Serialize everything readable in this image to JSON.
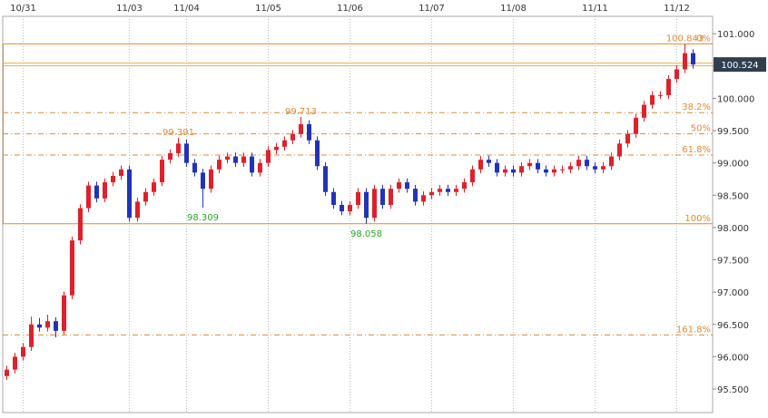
{
  "chart_data": {
    "type": "candlestick",
    "categories": [
      null,
      null,
      "10/31",
      null,
      null,
      null,
      null,
      null,
      null,
      null,
      null,
      null,
      null,
      null,
      null,
      "11/03",
      null,
      null,
      null,
      null,
      null,
      null,
      "11/04",
      null,
      null,
      null,
      null,
      null,
      null,
      null,
      null,
      null,
      "11/05",
      null,
      null,
      null,
      null,
      null,
      null,
      null,
      null,
      null,
      "11/06",
      null,
      null,
      null,
      null,
      null,
      null,
      null,
      null,
      null,
      "11/07",
      null,
      null,
      null,
      null,
      null,
      null,
      null,
      null,
      null,
      "11/08",
      null,
      null,
      null,
      null,
      null,
      null,
      null,
      null,
      null,
      "11/11",
      null,
      null,
      null,
      null,
      null,
      null,
      null,
      null,
      null,
      "11/12",
      null,
      null
    ],
    "open": [
      95.7,
      95.8,
      96.0,
      96.15,
      96.5,
      96.45,
      96.55,
      96.4,
      96.95,
      97.8,
      98.3,
      98.65,
      98.45,
      98.7,
      98.8,
      98.9,
      98.15,
      98.4,
      98.55,
      98.7,
      99.05,
      99.15,
      99.3,
      99.0,
      98.85,
      98.6,
      98.9,
      99.05,
      99.1,
      99.0,
      99.1,
      98.85,
      99.0,
      99.2,
      99.25,
      99.35,
      99.45,
      99.6,
      99.35,
      98.95,
      98.55,
      98.35,
      98.25,
      98.35,
      98.55,
      98.15,
      98.6,
      98.35,
      98.6,
      98.7,
      98.6,
      98.4,
      98.5,
      98.55,
      98.6,
      98.55,
      98.6,
      98.7,
      98.9,
      99.05,
      99.0,
      98.85,
      98.9,
      98.85,
      98.95,
      99.0,
      98.9,
      98.85,
      98.9,
      98.9,
      98.95,
      99.05,
      98.95,
      98.9,
      98.95,
      99.1,
      99.3,
      99.45,
      99.7,
      99.9,
      100.05,
      100.05,
      100.3,
      100.45,
      100.7
    ],
    "high": [
      95.86,
      96.06,
      96.21,
      96.62,
      96.6,
      96.65,
      96.61,
      97.01,
      97.86,
      98.36,
      98.71,
      98.71,
      98.76,
      98.86,
      98.96,
      98.96,
      98.46,
      98.61,
      98.76,
      99.11,
      99.21,
      99.391,
      99.36,
      99.06,
      98.91,
      98.96,
      99.11,
      99.16,
      99.16,
      99.16,
      99.16,
      99.06,
      99.26,
      99.31,
      99.41,
      99.51,
      99.713,
      99.66,
      99.41,
      99.01,
      98.61,
      98.41,
      98.41,
      98.61,
      98.61,
      98.66,
      98.66,
      98.66,
      98.76,
      98.76,
      98.66,
      98.56,
      98.61,
      98.66,
      98.66,
      98.66,
      98.76,
      98.96,
      99.11,
      99.11,
      99.06,
      98.96,
      98.96,
      99.01,
      99.06,
      99.06,
      98.96,
      98.96,
      98.96,
      99.01,
      99.11,
      99.11,
      99.01,
      99.01,
      99.16,
      99.36,
      99.51,
      99.76,
      99.96,
      100.11,
      100.11,
      100.36,
      100.51,
      100.843,
      100.76
    ],
    "low": [
      95.64,
      95.74,
      95.94,
      96.09,
      96.39,
      96.39,
      96.3,
      96.34,
      96.89,
      97.74,
      98.24,
      98.39,
      98.39,
      98.64,
      98.74,
      98.09,
      98.09,
      98.34,
      98.49,
      98.64,
      98.99,
      99.09,
      98.94,
      98.79,
      98.309,
      98.54,
      98.84,
      98.99,
      98.94,
      98.94,
      98.79,
      98.79,
      98.94,
      99.14,
      99.19,
      99.29,
      99.39,
      99.29,
      98.89,
      98.49,
      98.29,
      98.19,
      98.19,
      98.29,
      98.058,
      98.09,
      98.29,
      98.29,
      98.54,
      98.54,
      98.34,
      98.34,
      98.44,
      98.49,
      98.49,
      98.49,
      98.54,
      98.64,
      98.84,
      98.94,
      98.79,
      98.79,
      98.79,
      98.79,
      98.89,
      98.84,
      98.79,
      98.79,
      98.84,
      98.84,
      98.89,
      98.89,
      98.84,
      98.84,
      98.89,
      99.04,
      99.24,
      99.39,
      99.64,
      99.84,
      99.99,
      99.99,
      100.24,
      100.39,
      100.46
    ],
    "close": [
      95.8,
      96.0,
      96.15,
      96.5,
      96.45,
      96.55,
      96.4,
      96.95,
      97.8,
      98.3,
      98.65,
      98.45,
      98.7,
      98.8,
      98.9,
      98.15,
      98.4,
      98.55,
      98.7,
      99.05,
      99.15,
      99.3,
      99.0,
      98.85,
      98.6,
      98.9,
      99.05,
      99.1,
      99.0,
      99.1,
      98.85,
      99.0,
      99.2,
      99.25,
      99.35,
      99.45,
      99.6,
      99.35,
      98.95,
      98.55,
      98.35,
      98.25,
      98.35,
      98.55,
      98.15,
      98.6,
      98.35,
      98.6,
      98.7,
      98.6,
      98.4,
      98.5,
      98.55,
      98.6,
      98.55,
      98.6,
      98.7,
      98.9,
      99.05,
      99.0,
      98.85,
      98.9,
      98.85,
      98.95,
      99.0,
      98.9,
      98.85,
      98.9,
      98.9,
      98.95,
      99.05,
      98.95,
      98.9,
      98.95,
      99.1,
      99.3,
      99.45,
      99.7,
      99.9,
      100.05,
      100.05,
      100.3,
      100.45,
      100.7,
      100.524
    ],
    "up_color": "#e0202a",
    "down_color": "#2233bb",
    "highs": [
      99.391,
      99.713,
      100.843
    ],
    "high_color": "#e08a30",
    "lows": [
      98.309,
      98.058
    ],
    "low_color": "#22aa22",
    "last": 100.524,
    "last_color": "#e8b040",
    "fib_color": "#e08a30",
    "fib_levels": [
      {
        "value": 100.843,
        "label": "0%",
        "style": "solid"
      },
      {
        "value": 99.779,
        "label": "38.2%",
        "style": "dashdot"
      },
      {
        "value": 99.451,
        "label": "50%",
        "style": "dashdot"
      },
      {
        "value": 99.122,
        "label": "61.8%",
        "style": "dashdot"
      },
      {
        "value": 98.058,
        "label": "100%",
        "style": "solid"
      },
      {
        "value": 96.337,
        "label": "161.8%",
        "style": "dashdot"
      }
    ],
    "ylim": [
      95.135,
      101.27
    ],
    "yticks": [
      {
        "value": 95.5,
        "label": "95.500"
      },
      {
        "value": 96,
        "label": "96.000"
      },
      {
        "value": 96.5,
        "label": "96.500"
      },
      {
        "value": 97,
        "label": "97.000"
      },
      {
        "value": 97.5,
        "label": "97.500"
      },
      {
        "value": 98,
        "label": "98.000"
      },
      {
        "value": 98.5,
        "label": "98.500"
      },
      {
        "value": 99,
        "label": "99.000"
      },
      {
        "value": 99.5,
        "label": "99.500"
      },
      {
        "value": 100,
        "label": "100.000"
      },
      {
        "value": 100.5,
        "label": "100.500"
      },
      {
        "value": 101,
        "label": "101.000"
      }
    ]
  }
}
